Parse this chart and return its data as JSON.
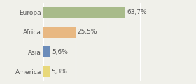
{
  "categories": [
    "Europa",
    "Africa",
    "Asia",
    "America"
  ],
  "values": [
    63.7,
    25.5,
    5.6,
    5.3
  ],
  "labels": [
    "63,7%",
    "25,5%",
    "5,6%",
    "5,3%"
  ],
  "bar_colors": [
    "#a8bb8a",
    "#e8b882",
    "#6b8cba",
    "#e8d87a"
  ],
  "background_color": "#f0f0ea",
  "xlim": [
    0,
    100
  ],
  "label_fontsize": 6.5,
  "category_fontsize": 6.5,
  "bar_height": 0.55,
  "figsize": [
    2.8,
    1.2
  ],
  "dpi": 100
}
